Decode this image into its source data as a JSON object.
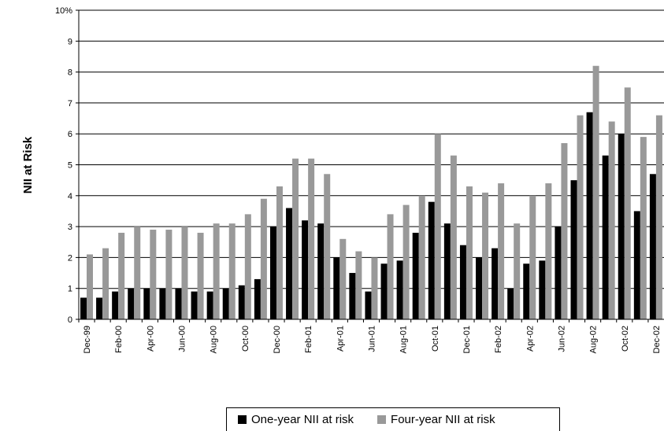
{
  "chart_data": {
    "type": "bar",
    "ylabel": "NII at Risk",
    "ylim": [
      0,
      10
    ],
    "y_ticks": [
      "0",
      "1",
      "2",
      "3",
      "4",
      "5",
      "6",
      "7",
      "8",
      "9",
      "10%"
    ],
    "grid": true,
    "legend_position": "bottom",
    "x_tick_labels": [
      "Dec-99",
      "Feb-00",
      "Apr-00",
      "Jun-00",
      "Aug-00",
      "Oct-00",
      "Dec-00",
      "Feb-01",
      "Apr-01",
      "Jun-01",
      "Aug-01",
      "Oct-01",
      "Dec-01",
      "Feb-02",
      "Apr-02",
      "Jun-02",
      "Aug-02",
      "Oct-02",
      "Dec-02"
    ],
    "categories": [
      "Dec-99",
      "Jan-00",
      "Feb-00",
      "Mar-00",
      "Apr-00",
      "May-00",
      "Jun-00",
      "Jul-00",
      "Aug-00",
      "Sep-00",
      "Oct-00",
      "Nov-00",
      "Dec-00",
      "Jan-01",
      "Feb-01",
      "Mar-01",
      "Apr-01",
      "May-01",
      "Jun-01",
      "Jul-01",
      "Aug-01",
      "Sep-01",
      "Oct-01",
      "Nov-01",
      "Dec-01",
      "Jan-02",
      "Feb-02",
      "Mar-02",
      "Apr-02",
      "May-02",
      "Jun-02",
      "Jul-02",
      "Aug-02",
      "Sep-02",
      "Oct-02",
      "Nov-02",
      "Dec-02"
    ],
    "series": [
      {
        "name": "One-year NII at risk",
        "color": "#000000",
        "values": [
          0.7,
          0.7,
          0.9,
          1.0,
          1.0,
          1.0,
          1.0,
          0.9,
          0.9,
          1.0,
          1.1,
          1.3,
          3.0,
          3.6,
          3.2,
          3.1,
          2.0,
          1.5,
          0.9,
          1.8,
          1.9,
          2.8,
          3.8,
          3.1,
          2.4,
          2.0,
          2.3,
          1.0,
          1.8,
          1.9,
          3.0,
          4.5,
          6.7,
          5.3,
          6.0,
          3.5,
          4.7
        ]
      },
      {
        "name": "Four-year NII at risk",
        "color": "#999999",
        "values": [
          2.1,
          2.3,
          2.8,
          3.0,
          2.9,
          2.9,
          3.0,
          2.8,
          3.1,
          3.1,
          3.4,
          3.9,
          4.3,
          5.2,
          5.2,
          4.7,
          2.6,
          2.2,
          2.0,
          3.4,
          3.7,
          4.0,
          6.0,
          5.3,
          4.3,
          4.1,
          4.4,
          3.1,
          4.0,
          4.4,
          5.7,
          6.6,
          8.2,
          6.4,
          7.5,
          5.9,
          6.6
        ]
      }
    ]
  }
}
